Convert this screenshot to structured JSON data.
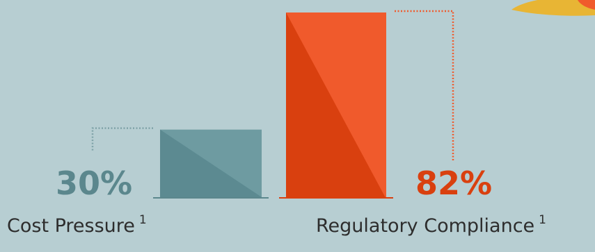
{
  "chart_data": {
    "type": "bar",
    "categories": [
      "Cost Pressure",
      "Regulatory Compliance"
    ],
    "footnote_marks": [
      "1",
      "1"
    ],
    "values": [
      30,
      82
    ],
    "value_labels": [
      "30%",
      "82%"
    ],
    "unit": "%",
    "ylim": [
      0,
      100
    ],
    "colors": {
      "bars": [
        "#6e9ba1",
        "#f05a2c"
      ],
      "bars_shadow": [
        "#5c8a91",
        "#d9400f"
      ],
      "value_labels": [
        "#5b878d",
        "#d9400f"
      ],
      "category_labels": "#2d2d2d",
      "background": "#b7ced2",
      "decoration": "#e8b534"
    },
    "grid": false,
    "legend": "none"
  }
}
